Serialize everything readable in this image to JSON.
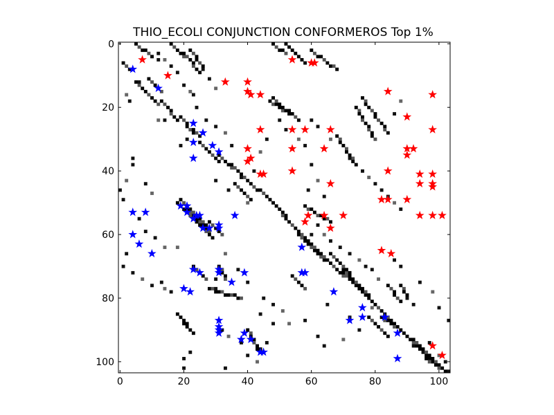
{
  "chart_data": {
    "type": "heatmap",
    "title": "THIO_ECOLI CONJUNCTION CONFORMEROS Top 1%",
    "xlim": [
      -0.5,
      103.5
    ],
    "ylim": [
      103.5,
      -0.5
    ],
    "x_ticks": [
      0,
      20,
      40,
      60,
      80,
      100
    ],
    "y_ticks": [
      0,
      20,
      40,
      60,
      80,
      100
    ],
    "grid": false,
    "colors": {
      "heatmap_high": "#000000",
      "heatmap_low": "#ffffff",
      "blue_markers": "#0000ff",
      "red_markers": "#ff0000"
    },
    "contact_segments": [
      [
        1,
        3,
        6,
        8
      ],
      [
        5,
        8,
        12,
        15
      ],
      [
        8,
        12,
        15,
        19
      ],
      [
        9,
        13,
        11,
        15
      ],
      [
        13,
        18,
        18,
        24
      ],
      [
        19,
        23,
        23,
        28
      ],
      [
        23,
        25,
        27,
        29
      ],
      [
        25,
        31,
        31,
        37
      ],
      [
        31,
        35,
        35,
        39
      ],
      [
        35,
        43,
        38,
        46
      ],
      [
        36,
        41,
        44,
        49
      ],
      [
        19,
        27,
        49,
        57
      ],
      [
        21,
        28,
        52,
        59
      ],
      [
        23,
        29,
        55,
        61
      ],
      [
        18,
        24,
        50,
        56
      ],
      [
        28,
        32,
        56,
        60
      ],
      [
        53,
        60,
        56,
        63
      ],
      [
        54,
        58,
        73,
        77
      ],
      [
        56,
        64,
        60,
        68
      ],
      [
        60,
        70,
        63,
        73
      ],
      [
        70,
        80,
        72,
        82
      ],
      [
        80,
        90,
        82,
        92
      ],
      [
        88,
        98,
        90,
        100
      ],
      [
        92,
        102,
        93,
        103
      ],
      [
        5,
        10,
        0,
        4
      ],
      [
        16,
        20,
        0,
        4
      ],
      [
        20,
        25,
        3,
        9
      ],
      [
        22,
        26,
        2,
        7
      ],
      [
        58,
        66,
        51,
        56
      ],
      [
        28,
        38,
        77,
        80
      ],
      [
        18,
        22,
        85,
        90
      ],
      [
        19,
        23,
        86,
        91
      ],
      [
        31,
        33,
        70,
        74
      ],
      [
        23,
        27,
        70,
        74
      ],
      [
        40,
        44,
        90,
        97
      ],
      [
        41,
        45,
        93,
        97
      ],
      [
        76,
        84,
        17,
        28
      ],
      [
        74,
        80,
        20,
        30
      ],
      [
        68,
        74,
        29,
        38
      ],
      [
        47,
        53,
        18,
        22
      ],
      [
        48,
        56,
        17,
        24
      ],
      [
        44,
        52,
        46,
        54
      ],
      [
        48,
        54,
        50,
        57
      ],
      [
        60,
        68,
        2,
        8
      ],
      [
        52,
        58,
        0,
        6
      ],
      [
        48,
        52,
        0,
        3
      ],
      [
        53,
        56,
        1,
        4
      ],
      [
        78,
        84,
        86,
        92
      ],
      [
        82,
        88,
        86,
        90
      ],
      [
        84,
        88,
        76,
        81
      ],
      [
        88,
        90,
        76,
        79
      ],
      [
        70,
        78,
        71,
        79
      ],
      [
        72,
        78,
        74,
        80
      ],
      [
        66,
        72,
        66,
        72
      ],
      [
        96,
        102,
        99,
        103
      ]
    ],
    "contact_points": [
      [
        2,
        16
      ],
      [
        3,
        18
      ],
      [
        6,
        12
      ],
      [
        12,
        5
      ],
      [
        12,
        24
      ],
      [
        14,
        24
      ],
      [
        4,
        36
      ],
      [
        4,
        38
      ],
      [
        2,
        43
      ],
      [
        0,
        46
      ],
      [
        1,
        49
      ],
      [
        8,
        44
      ],
      [
        10,
        47
      ],
      [
        16,
        21
      ],
      [
        19,
        32
      ],
      [
        21,
        30
      ],
      [
        18,
        64
      ],
      [
        22,
        97
      ],
      [
        20,
        99
      ],
      [
        20,
        102
      ],
      [
        14,
        77
      ],
      [
        16,
        78
      ],
      [
        30,
        74
      ],
      [
        30,
        77
      ],
      [
        33,
        66
      ],
      [
        37,
        71
      ],
      [
        40,
        75
      ],
      [
        32,
        90
      ],
      [
        34,
        92
      ],
      [
        44,
        85
      ],
      [
        48,
        88
      ],
      [
        46,
        94
      ],
      [
        53,
        88
      ],
      [
        58,
        87
      ],
      [
        62,
        92
      ],
      [
        64,
        95
      ],
      [
        70,
        93
      ],
      [
        72,
        86
      ],
      [
        75,
        90
      ],
      [
        65,
        82
      ],
      [
        79,
        83
      ],
      [
        90,
        80
      ],
      [
        92,
        82
      ],
      [
        94,
        75
      ],
      [
        98,
        78
      ],
      [
        100,
        83
      ],
      [
        103,
        87
      ],
      [
        79,
        71
      ],
      [
        81,
        74
      ],
      [
        86,
        68
      ],
      [
        88,
        70
      ],
      [
        59,
        46
      ],
      [
        62,
        43
      ],
      [
        64,
        48
      ],
      [
        60,
        38
      ],
      [
        58,
        32
      ],
      [
        56,
        30
      ],
      [
        52,
        27
      ],
      [
        50,
        24
      ],
      [
        46,
        30
      ],
      [
        44,
        34
      ],
      [
        42,
        40
      ],
      [
        38,
        42
      ],
      [
        35,
        32
      ],
      [
        33,
        28
      ],
      [
        30,
        26
      ],
      [
        27,
        24
      ],
      [
        24,
        20
      ],
      [
        22,
        15
      ],
      [
        20,
        13
      ],
      [
        18,
        9
      ],
      [
        16,
        7
      ],
      [
        14,
        5
      ],
      [
        12,
        3
      ],
      [
        26,
        8
      ],
      [
        28,
        11
      ],
      [
        30,
        14
      ],
      [
        23,
        16
      ],
      [
        30,
        43
      ],
      [
        34,
        46
      ],
      [
        40,
        50
      ],
      [
        6,
        55
      ],
      [
        8,
        59
      ],
      [
        11,
        61
      ],
      [
        14,
        64
      ],
      [
        2,
        66
      ],
      [
        1,
        70
      ],
      [
        4,
        72
      ],
      [
        7,
        74
      ],
      [
        10,
        76
      ],
      [
        13,
        75
      ],
      [
        76,
        40
      ],
      [
        78,
        42
      ],
      [
        80,
        44
      ],
      [
        82,
        46
      ],
      [
        84,
        48
      ],
      [
        86,
        50
      ],
      [
        88,
        52
      ],
      [
        72,
        36
      ],
      [
        74,
        38
      ],
      [
        66,
        30
      ],
      [
        62,
        26
      ],
      [
        60,
        24
      ],
      [
        86,
        22
      ],
      [
        88,
        18
      ],
      [
        66,
        62
      ],
      [
        69,
        64
      ],
      [
        72,
        66
      ],
      [
        75,
        68
      ],
      [
        77,
        70
      ],
      [
        92,
        95
      ],
      [
        95,
        97
      ],
      [
        98,
        99
      ],
      [
        100,
        101
      ],
      [
        103,
        103
      ],
      [
        102,
        100
      ],
      [
        100,
        98
      ],
      [
        97,
        94
      ],
      [
        60,
        60
      ],
      [
        62,
        57
      ],
      [
        64,
        60
      ],
      [
        66,
        58
      ],
      [
        38,
        94
      ],
      [
        40,
        98
      ],
      [
        43,
        100
      ],
      [
        33,
        102
      ],
      [
        45,
        80
      ],
      [
        48,
        82
      ],
      [
        51,
        84
      ]
    ],
    "series": [
      {
        "color": "#0000ff",
        "points": [
          [
            4,
            8
          ],
          [
            12,
            14
          ],
          [
            23,
            25
          ],
          [
            26,
            28
          ],
          [
            23,
            31
          ],
          [
            29,
            32
          ],
          [
            31,
            34
          ],
          [
            23,
            36
          ],
          [
            4,
            53
          ],
          [
            8,
            53
          ],
          [
            19,
            51
          ],
          [
            21,
            51
          ],
          [
            21,
            53
          ],
          [
            24,
            54
          ],
          [
            25,
            54
          ],
          [
            23,
            55
          ],
          [
            26,
            58
          ],
          [
            28,
            58
          ],
          [
            31,
            57
          ],
          [
            31,
            58
          ],
          [
            36,
            54
          ],
          [
            4,
            60
          ],
          [
            6,
            63
          ],
          [
            10,
            66
          ],
          [
            23,
            71
          ],
          [
            25,
            72
          ],
          [
            31,
            71
          ],
          [
            31,
            72
          ],
          [
            39,
            72
          ],
          [
            35,
            75
          ],
          [
            20,
            77
          ],
          [
            22,
            78
          ],
          [
            31,
            87
          ],
          [
            31,
            89
          ],
          [
            31,
            90
          ],
          [
            31,
            91
          ],
          [
            39,
            91
          ],
          [
            38,
            93
          ],
          [
            41,
            93
          ],
          [
            44,
            97
          ],
          [
            45,
            97
          ],
          [
            57,
            64
          ],
          [
            57,
            72
          ],
          [
            58,
            72
          ],
          [
            67,
            78
          ],
          [
            76,
            83
          ],
          [
            72,
            87
          ],
          [
            76,
            86
          ],
          [
            83,
            86
          ],
          [
            87,
            91
          ],
          [
            87,
            99
          ]
        ]
      },
      {
        "color": "#ff0000",
        "points": [
          [
            7,
            5
          ],
          [
            15,
            10
          ],
          [
            33,
            12
          ],
          [
            40,
            12
          ],
          [
            40,
            15
          ],
          [
            41,
            16
          ],
          [
            44,
            16
          ],
          [
            54,
            5
          ],
          [
            60,
            6
          ],
          [
            61,
            6
          ],
          [
            84,
            15
          ],
          [
            98,
            16
          ],
          [
            44,
            27
          ],
          [
            54,
            27
          ],
          [
            58,
            27
          ],
          [
            66,
            27
          ],
          [
            90,
            23
          ],
          [
            98,
            27
          ],
          [
            40,
            33
          ],
          [
            54,
            33
          ],
          [
            64,
            33
          ],
          [
            90,
            33
          ],
          [
            92,
            33
          ],
          [
            90,
            35
          ],
          [
            41,
            36
          ],
          [
            40,
            37
          ],
          [
            44,
            41
          ],
          [
            45,
            41
          ],
          [
            54,
            40
          ],
          [
            84,
            40
          ],
          [
            94,
            41
          ],
          [
            98,
            41
          ],
          [
            94,
            44
          ],
          [
            98,
            44
          ],
          [
            98,
            45
          ],
          [
            66,
            44
          ],
          [
            82,
            49
          ],
          [
            84,
            49
          ],
          [
            90,
            49
          ],
          [
            59,
            54
          ],
          [
            64,
            54
          ],
          [
            70,
            54
          ],
          [
            94,
            54
          ],
          [
            98,
            54
          ],
          [
            101,
            54
          ],
          [
            58,
            56
          ],
          [
            66,
            58
          ],
          [
            82,
            65
          ],
          [
            85,
            66
          ],
          [
            98,
            95
          ],
          [
            101,
            98
          ]
        ]
      }
    ]
  }
}
